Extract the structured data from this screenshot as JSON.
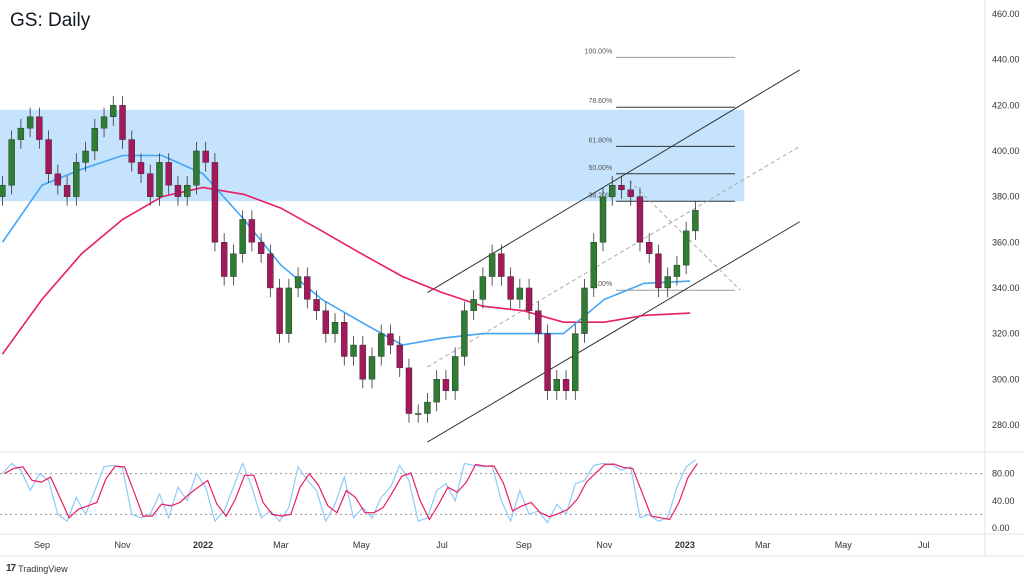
{
  "header": {
    "title": "GS: Daily"
  },
  "footer": {
    "brand": "TradingView",
    "logo_icon": "tradingview-logo-icon"
  },
  "colors": {
    "up": "#2e7d32",
    "down": "#a3195b",
    "ma_fast": "#42a5f5",
    "ma_slow": "#e91e63",
    "zone": "#bbdefb",
    "stoch_k": "#90caf9",
    "stoch_d": "#e91e63"
  },
  "chart_data": {
    "type": "candlestick",
    "price_axis": {
      "ticks": [
        "460.00",
        "440.00",
        "420.00",
        "400.00",
        "380.00",
        "360.00",
        "340.00",
        "320.00",
        "300.00",
        "280.00"
      ],
      "range": [
        272,
        462
      ]
    },
    "time_axis": {
      "ticks": [
        {
          "label": "Sep",
          "date": "2021-09-01"
        },
        {
          "label": "Nov",
          "date": "2021-11-01"
        },
        {
          "label": "2022",
          "date": "2022-01-01",
          "bold": true
        },
        {
          "label": "Mar",
          "date": "2022-03-01"
        },
        {
          "label": "May",
          "date": "2022-05-01"
        },
        {
          "label": "Jul",
          "date": "2022-07-01"
        },
        {
          "label": "Sep",
          "date": "2022-09-01"
        },
        {
          "label": "Nov",
          "date": "2022-11-01"
        },
        {
          "label": "2023",
          "date": "2023-01-01",
          "bold": true
        },
        {
          "label": "Mar",
          "date": "2023-03-01"
        },
        {
          "label": "May",
          "date": "2023-05-01"
        },
        {
          "label": "Jul",
          "date": "2023-07-01"
        }
      ]
    },
    "start_date": "2021-08-02",
    "closes": [
      385,
      405,
      410,
      415,
      405,
      390,
      385,
      380,
      395,
      400,
      410,
      415,
      420,
      405,
      395,
      390,
      380,
      395,
      385,
      380,
      385,
      400,
      395,
      360,
      345,
      355,
      370,
      360,
      355,
      340,
      320,
      340,
      345,
      335,
      330,
      320,
      325,
      310,
      315,
      300,
      310,
      320,
      315,
      305,
      285,
      285,
      290,
      300,
      295,
      310,
      330,
      335,
      345,
      355,
      345,
      335,
      340,
      330,
      320,
      295,
      300,
      295,
      320,
      340,
      360,
      380,
      385,
      383,
      380,
      360,
      355,
      340,
      345,
      350,
      365,
      374
    ],
    "ma_fast": {
      "dates": [
        "2021-08-02",
        "2021-09-01",
        "2021-10-01",
        "2021-11-01",
        "2021-12-01",
        "2022-01-01",
        "2022-02-01",
        "2022-03-01",
        "2022-04-01",
        "2022-05-01",
        "2022-06-01",
        "2022-07-01",
        "2022-08-01",
        "2022-09-01",
        "2022-10-01",
        "2022-11-01",
        "2022-12-01",
        "2023-01-05"
      ],
      "values": [
        360,
        385,
        392,
        398,
        398,
        390,
        370,
        350,
        335,
        325,
        315,
        318,
        320,
        320,
        320,
        335,
        342,
        343
      ]
    },
    "ma_slow": {
      "dates": [
        "2021-08-02",
        "2021-09-01",
        "2021-10-01",
        "2021-11-01",
        "2021-12-01",
        "2022-01-01",
        "2022-02-01",
        "2022-03-01",
        "2022-04-01",
        "2022-05-01",
        "2022-06-01",
        "2022-07-01",
        "2022-08-01",
        "2022-09-01",
        "2022-10-01",
        "2022-11-01",
        "2022-12-01",
        "2023-01-05"
      ],
      "values": [
        311,
        335,
        355,
        370,
        380,
        384,
        381,
        375,
        365,
        355,
        345,
        338,
        332,
        330,
        325,
        325,
        328,
        329
      ]
    },
    "zone": {
      "from": "2021-08-02",
      "to": "2023-02-15",
      "low": 378,
      "high": 418
    },
    "fib": {
      "from": "2022-11-10",
      "to": "2023-02-08",
      "low": 339,
      "high": 441,
      "levels": [
        {
          "label": "100.00%",
          "ratio": 1
        },
        {
          "label": "78.60%",
          "ratio": 0.786
        },
        {
          "label": "61.80%",
          "ratio": 0.618
        },
        {
          "label": "50.00%",
          "ratio": 0.5
        },
        {
          "label": "38.20%",
          "ratio": 0.382
        },
        {
          "label": "0.00%",
          "ratio": 0
        }
      ]
    },
    "channel": {
      "upper": [
        [
          "2022-06-20",
          338
        ],
        [
          "2023-03-29",
          435.5
        ]
      ],
      "middle": [
        [
          "2022-06-20",
          305.4
        ],
        [
          "2023-03-29",
          402
        ]
      ],
      "lower": [
        [
          "2022-06-20",
          272.5
        ],
        [
          "2023-03-29",
          369
        ]
      ]
    },
    "trend_dashed": [
      [
        "2022-11-20",
        387
      ],
      [
        "2023-02-12",
        339
      ]
    ],
    "stochastic": {
      "ticks": [
        "80.00",
        "40.00",
        "0.00"
      ],
      "levels": [
        80,
        20
      ],
      "k": [
        80,
        95,
        85,
        55,
        80,
        70,
        20,
        10,
        45,
        20,
        55,
        90,
        92,
        88,
        20,
        15,
        20,
        50,
        15,
        60,
        40,
        80,
        60,
        10,
        25,
        60,
        95,
        60,
        15,
        25,
        10,
        30,
        90,
        70,
        55,
        10,
        35,
        75,
        15,
        30,
        15,
        45,
        60,
        92,
        70,
        10,
        15,
        55,
        65,
        40,
        95,
        92,
        90,
        92,
        40,
        10,
        55,
        20,
        25,
        8,
        35,
        20,
        65,
        70,
        92,
        95,
        93,
        85,
        90,
        15,
        20,
        10,
        15,
        60,
        90,
        100
      ]
    }
  }
}
